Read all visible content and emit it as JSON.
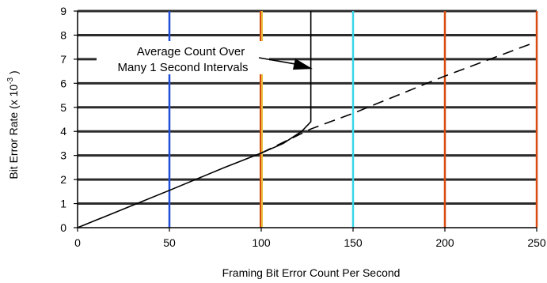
{
  "chart_data": {
    "type": "line",
    "title": "",
    "xlabel": "Framing Bit Error Count Per Second",
    "ylabel_main": "Bit Error Rate (x 10",
    "ylabel_exp": "-3",
    "ylabel_tail": " )",
    "xlim": [
      0,
      250
    ],
    "ylim": [
      0,
      9
    ],
    "x_ticks": [
      "0",
      "50",
      "100",
      "150",
      "200",
      "250"
    ],
    "y_ticks": [
      "0",
      "1",
      "2",
      "3",
      "4",
      "5",
      "6",
      "7",
      "8",
      "9"
    ],
    "grid": "horizontal",
    "vertical_markers": [
      {
        "x": 50,
        "color": "#1f4fd6"
      },
      {
        "x": 100,
        "color": "#e8c23a"
      },
      {
        "x": 150,
        "color": "#3ad6e8"
      },
      {
        "x": 200,
        "color": "#d84a10"
      },
      {
        "x": 250,
        "color": "#d84a10"
      }
    ],
    "series": [
      {
        "style": "solid",
        "color": "#000000",
        "points": [
          [
            0,
            0
          ],
          [
            50,
            1.55
          ],
          [
            80,
            2.5
          ],
          [
            100,
            3.1
          ],
          [
            112,
            3.5
          ],
          [
            122,
            4.0
          ],
          [
            127,
            4.4
          ],
          [
            127,
            9.0
          ]
        ]
      },
      {
        "style": "dashed",
        "color": "#000000",
        "points": [
          [
            100,
            3.1
          ],
          [
            127,
            4.1
          ],
          [
            150,
            4.75
          ],
          [
            200,
            6.3
          ],
          [
            249,
            7.7
          ]
        ]
      }
    ],
    "annotation": {
      "lines": [
        "Average Count Over",
        "Many 1 Second Intervals"
      ],
      "arrow_to": [
        128,
        6.6
      ]
    }
  }
}
